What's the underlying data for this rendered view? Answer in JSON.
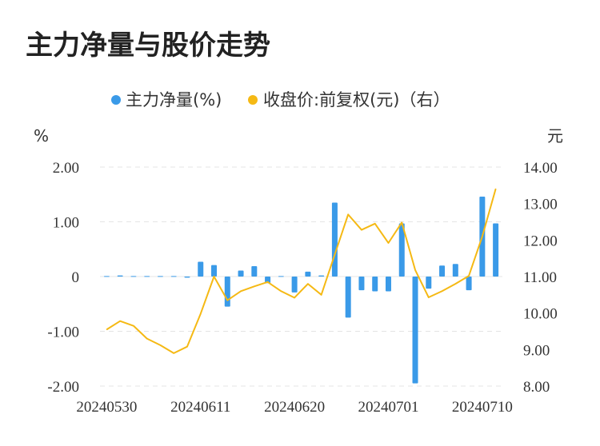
{
  "title": "主力净量与股价走势",
  "legend": {
    "bar_label": "主力净量(%)",
    "line_label": "收盘价:前复权(元)（右）"
  },
  "axes": {
    "left_unit": "%",
    "right_unit": "元",
    "left_ticks": [
      "2.00",
      "1.00",
      "0",
      "-1.00",
      "-2.00"
    ],
    "right_ticks": [
      "14.00",
      "13.00",
      "12.00",
      "11.00",
      "10.00",
      "9.00",
      "8.00"
    ],
    "x_ticks": [
      "20240530",
      "20240611",
      "20240620",
      "20240701",
      "20240710"
    ]
  },
  "colors": {
    "bar": "#3a9ae8",
    "line": "#f5b914",
    "grid": "#e4e4e4"
  },
  "chart_data": {
    "type": "bar+line",
    "title": "主力净量与股价走势",
    "dates": [
      "20240530",
      "20240531",
      "20240603",
      "20240604",
      "20240605",
      "20240606",
      "20240607",
      "20240611",
      "20240612",
      "20240613",
      "20240614",
      "20240617",
      "20240618",
      "20240619",
      "20240620",
      "20240621",
      "20240624",
      "20240625",
      "20240626",
      "20240627",
      "20240628",
      "20240701",
      "20240702",
      "20240703",
      "20240704",
      "20240705",
      "20240708",
      "20240709",
      "20240710",
      "20240711"
    ],
    "x_tick_labels": [
      "20240530",
      "20240611",
      "20240620",
      "20240701",
      "20240710"
    ],
    "series": [
      {
        "name": "主力净量(%)",
        "type": "bar",
        "axis": "left",
        "values": [
          0.01,
          0.02,
          0.01,
          0.01,
          0.01,
          0.01,
          -0.02,
          0.27,
          0.21,
          -0.55,
          0.11,
          0.19,
          -0.12,
          0.01,
          -0.29,
          0.09,
          0.02,
          1.35,
          -0.75,
          -0.25,
          -0.27,
          -0.27,
          0.97,
          -1.95,
          -0.22,
          0.2,
          0.23,
          -0.25,
          1.46,
          0.97
        ]
      },
      {
        "name": "收盘价:前复权(元)（右）",
        "type": "line",
        "axis": "right",
        "values": [
          9.55,
          9.78,
          9.65,
          9.3,
          9.12,
          8.9,
          9.08,
          9.98,
          11.0,
          10.35,
          10.6,
          10.73,
          10.85,
          10.6,
          10.42,
          10.8,
          10.5,
          11.6,
          12.7,
          12.28,
          12.45,
          11.92,
          12.48,
          11.18,
          10.43,
          10.6,
          10.8,
          11.02,
          12.1,
          13.4
        ]
      }
    ],
    "ylim_left": [
      -2,
      2
    ],
    "ylim_right": [
      8,
      14
    ],
    "grid": true,
    "legend_position": "top-center"
  }
}
